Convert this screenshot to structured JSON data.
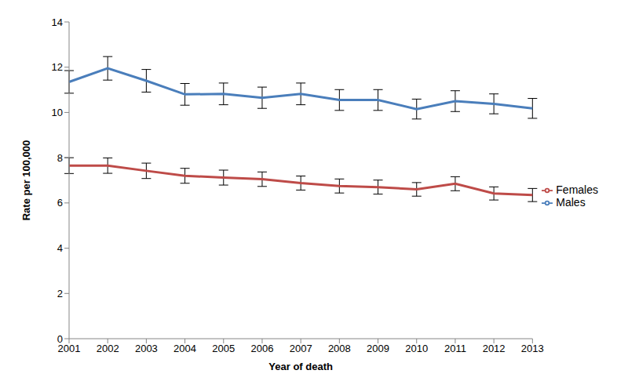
{
  "chart_data": {
    "type": "line",
    "x_label": "Year of death",
    "y_label": "Rate per 100,000",
    "categories": [
      "2001",
      "2002",
      "2003",
      "2004",
      "2005",
      "2006",
      "2007",
      "2008",
      "2009",
      "2010",
      "2011",
      "2012",
      "2013"
    ],
    "series": [
      {
        "name": "Males",
        "color": "#4a7ebb",
        "values": [
          11.35,
          11.95,
          11.4,
          10.8,
          10.82,
          10.65,
          10.82,
          10.55,
          10.55,
          10.15,
          10.5,
          10.38,
          10.18
        ],
        "errors": [
          0.5,
          0.52,
          0.5,
          0.48,
          0.48,
          0.47,
          0.48,
          0.46,
          0.46,
          0.44,
          0.46,
          0.44,
          0.44
        ]
      },
      {
        "name": "Females",
        "color": "#be4b48",
        "values": [
          7.65,
          7.65,
          7.42,
          7.2,
          7.12,
          7.05,
          6.88,
          6.75,
          6.7,
          6.6,
          6.85,
          6.42,
          6.35
        ],
        "errors": [
          0.35,
          0.34,
          0.34,
          0.33,
          0.33,
          0.32,
          0.31,
          0.31,
          0.31,
          0.3,
          0.31,
          0.29,
          0.29
        ]
      }
    ],
    "ylim": [
      0,
      14
    ],
    "yticks": [
      0,
      2,
      4,
      6,
      8,
      10,
      12,
      14
    ],
    "grid": false,
    "legend": "right"
  }
}
